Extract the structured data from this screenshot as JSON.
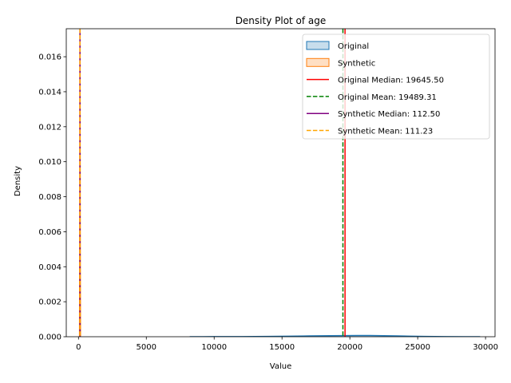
{
  "chart_data": {
    "type": "area",
    "title": "Density Plot of age",
    "xlabel": "Value",
    "ylabel": "Density",
    "xlim": [
      -900,
      30700
    ],
    "ylim": [
      0,
      0.0176
    ],
    "xticks": [
      0,
      5000,
      10000,
      15000,
      20000,
      25000,
      30000
    ],
    "yticks": [
      0.0,
      0.002,
      0.004,
      0.006,
      0.008,
      0.01,
      0.012,
      0.014,
      0.016
    ],
    "ytick_labels": [
      "0.000",
      "0.002",
      "0.004",
      "0.006",
      "0.008",
      "0.010",
      "0.012",
      "0.014",
      "0.016"
    ],
    "grid": false,
    "legend_position": "upper right",
    "series": [
      {
        "name": "Original",
        "kind": "density",
        "color": "#1f77b4",
        "x": [
          8200,
          10000,
          12000,
          14000,
          15500,
          17000,
          18500,
          19500,
          20500,
          21500,
          22500,
          23500,
          24500,
          25500,
          27000,
          28500,
          29600
        ],
        "y": [
          0.0,
          3e-06,
          8e-06,
          1.8e-05,
          3e-05,
          4.5e-05,
          5.8e-05,
          6.5e-05,
          6.8e-05,
          6.6e-05,
          5.8e-05,
          4.4e-05,
          2.8e-05,
          1.5e-05,
          6e-06,
          2e-06,
          0.0
        ]
      },
      {
        "name": "Synthetic",
        "kind": "density",
        "color": "#ff7f0e",
        "x": [
          80,
          95,
          105,
          112,
          118,
          128,
          145
        ],
        "y": [
          0.0,
          0.006,
          0.015,
          0.0176,
          0.015,
          0.006,
          0.0
        ]
      }
    ],
    "reference_lines": [
      {
        "label": "Original Median: 19645.50",
        "x": 19645.5,
        "color": "#ff0000",
        "style": "solid"
      },
      {
        "label": "Original Mean: 19489.31",
        "x": 19489.31,
        "color": "#008000",
        "style": "dashed"
      },
      {
        "label": "Synthetic Median: 112.50",
        "x": 112.5,
        "color": "#800080",
        "style": "solid"
      },
      {
        "label": "Synthetic Mean: 111.23",
        "x": 111.23,
        "color": "#ffa500",
        "style": "dashed"
      }
    ]
  }
}
